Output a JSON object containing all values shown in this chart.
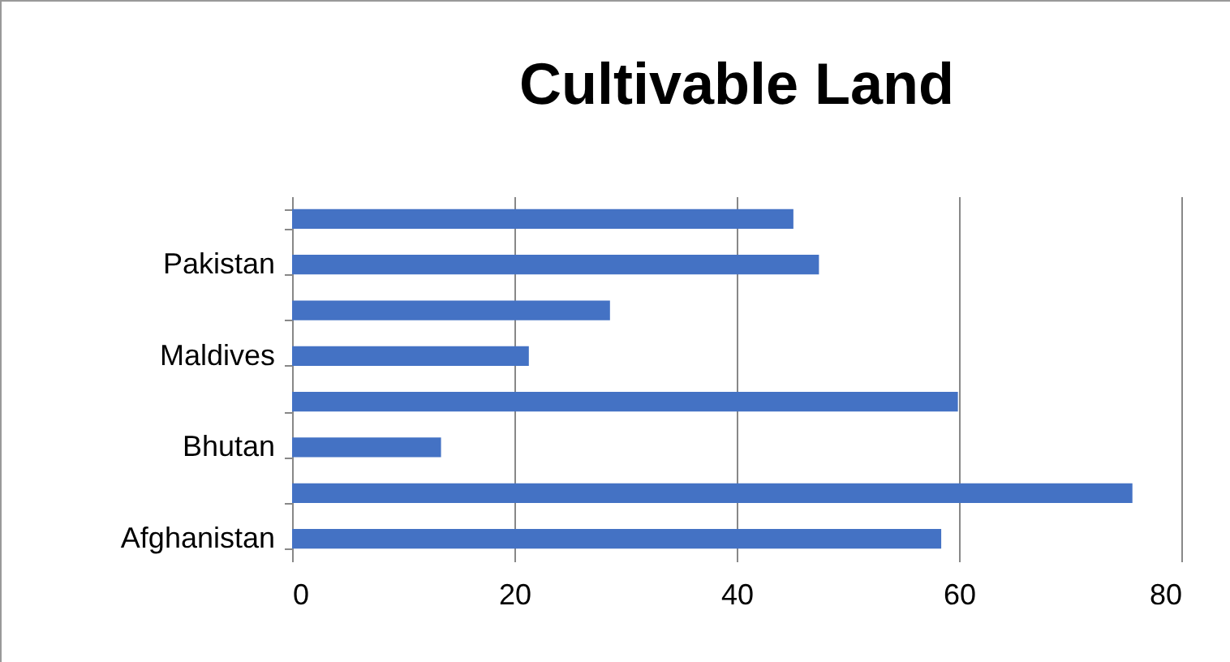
{
  "chart_data": {
    "type": "bar",
    "title": "Cultivable Land",
    "orientation": "horizontal",
    "categories": [
      null,
      "Pakistan",
      null,
      "Maldives",
      null,
      "Bhutan",
      null,
      "Afghanistan"
    ],
    "values": [
      45.1,
      47.4,
      28.6,
      21.3,
      59.9,
      13.4,
      75.6,
      58.4
    ],
    "color": "#4472c4",
    "xlim": [
      0,
      80
    ],
    "xticks": [
      0,
      20,
      40,
      60,
      80
    ],
    "grid": "x"
  }
}
